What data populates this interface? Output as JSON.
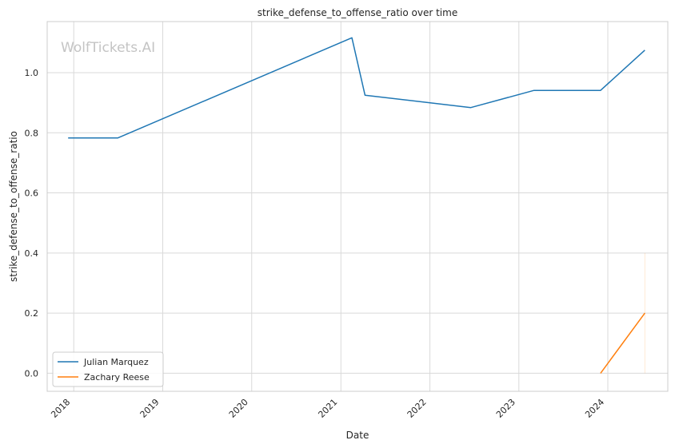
{
  "chart_data": {
    "type": "line",
    "title": "strike_defense_to_offense_ratio over time",
    "xlabel": "Date",
    "ylabel": "strike_defense_to_offense_ratio",
    "watermark": "WolfTickets.AI",
    "x_ticks": [
      "2018",
      "2019",
      "2020",
      "2021",
      "2022",
      "2023",
      "2024"
    ],
    "y_ticks": [
      "0.0",
      "0.2",
      "0.4",
      "0.6",
      "0.8",
      "1.0"
    ],
    "xlim": [
      "2017-09-14",
      "2024-09-03"
    ],
    "ylim": [
      -0.06,
      1.17
    ],
    "grid": true,
    "legend_position": "lower-left",
    "series": [
      {
        "name": "Julian Marquez",
        "color": "#1f77b4",
        "points": [
          {
            "x": "2017-12-09",
            "y": 0.783
          },
          {
            "x": "2018-07-01",
            "y": 0.783
          },
          {
            "x": "2021-02-15",
            "y": 1.116
          },
          {
            "x": "2021-04-10",
            "y": 0.925
          },
          {
            "x": "2022-06-18",
            "y": 0.884
          },
          {
            "x": "2023-03-04",
            "y": 0.941
          },
          {
            "x": "2023-12-02",
            "y": 0.941
          },
          {
            "x": "2024-06-01",
            "y": 1.075
          }
        ]
      },
      {
        "name": "Zachary Reese",
        "color": "#ff7f0e",
        "points": [
          {
            "x": "2023-12-02",
            "y": 0.0
          },
          {
            "x": "2024-06-01",
            "y": 0.2
          }
        ],
        "band": {
          "x": "2024-06-01",
          "y0": 0.0,
          "y1": 0.4
        }
      }
    ]
  }
}
